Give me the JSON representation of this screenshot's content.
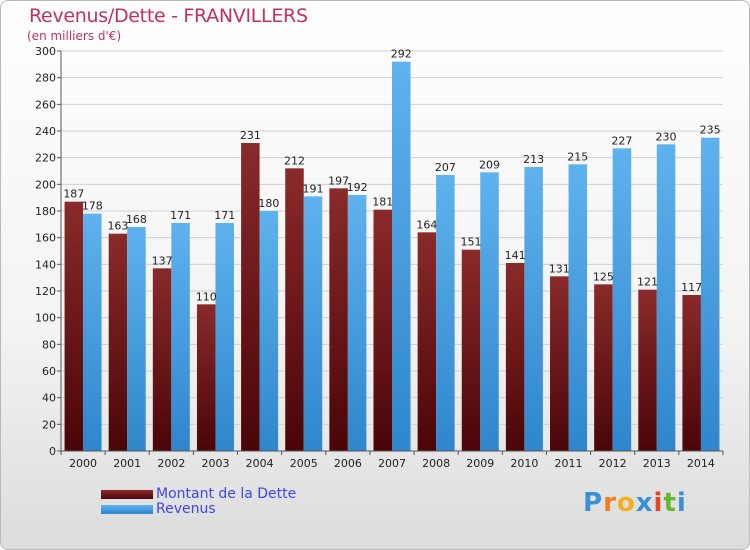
{
  "chart_data": {
    "type": "bar",
    "title": "Revenus/Dette - FRANVILLERS",
    "subtitle": "(en milliers d'€)",
    "categories": [
      "2000",
      "2001",
      "2002",
      "2003",
      "2004",
      "2005",
      "2006",
      "2007",
      "2008",
      "2009",
      "2010",
      "2011",
      "2012",
      "2013",
      "2014"
    ],
    "series": [
      {
        "name": "Montant de la Dette",
        "color": "#6b0e12",
        "values": [
          187,
          163,
          137,
          110,
          231,
          212,
          197,
          181,
          164,
          151,
          141,
          131,
          125,
          121,
          117
        ]
      },
      {
        "name": "Revenus",
        "color": "#4a9fe0",
        "values": [
          178,
          168,
          171,
          171,
          180,
          191,
          192,
          292,
          207,
          209,
          213,
          215,
          227,
          230,
          235
        ]
      }
    ],
    "ylim": [
      0,
      300
    ],
    "ytick_step": 20,
    "grid": true,
    "legend_position": "bottom-left"
  },
  "logo": {
    "letters": [
      "P",
      "r",
      "o",
      "x",
      "i",
      "t",
      "i"
    ],
    "colors": [
      "#3a8fd8",
      "#f07c1e",
      "#f2b01e",
      "#3a8fd8",
      "#e8432a",
      "#66b82f",
      "#3a8fd8"
    ]
  }
}
